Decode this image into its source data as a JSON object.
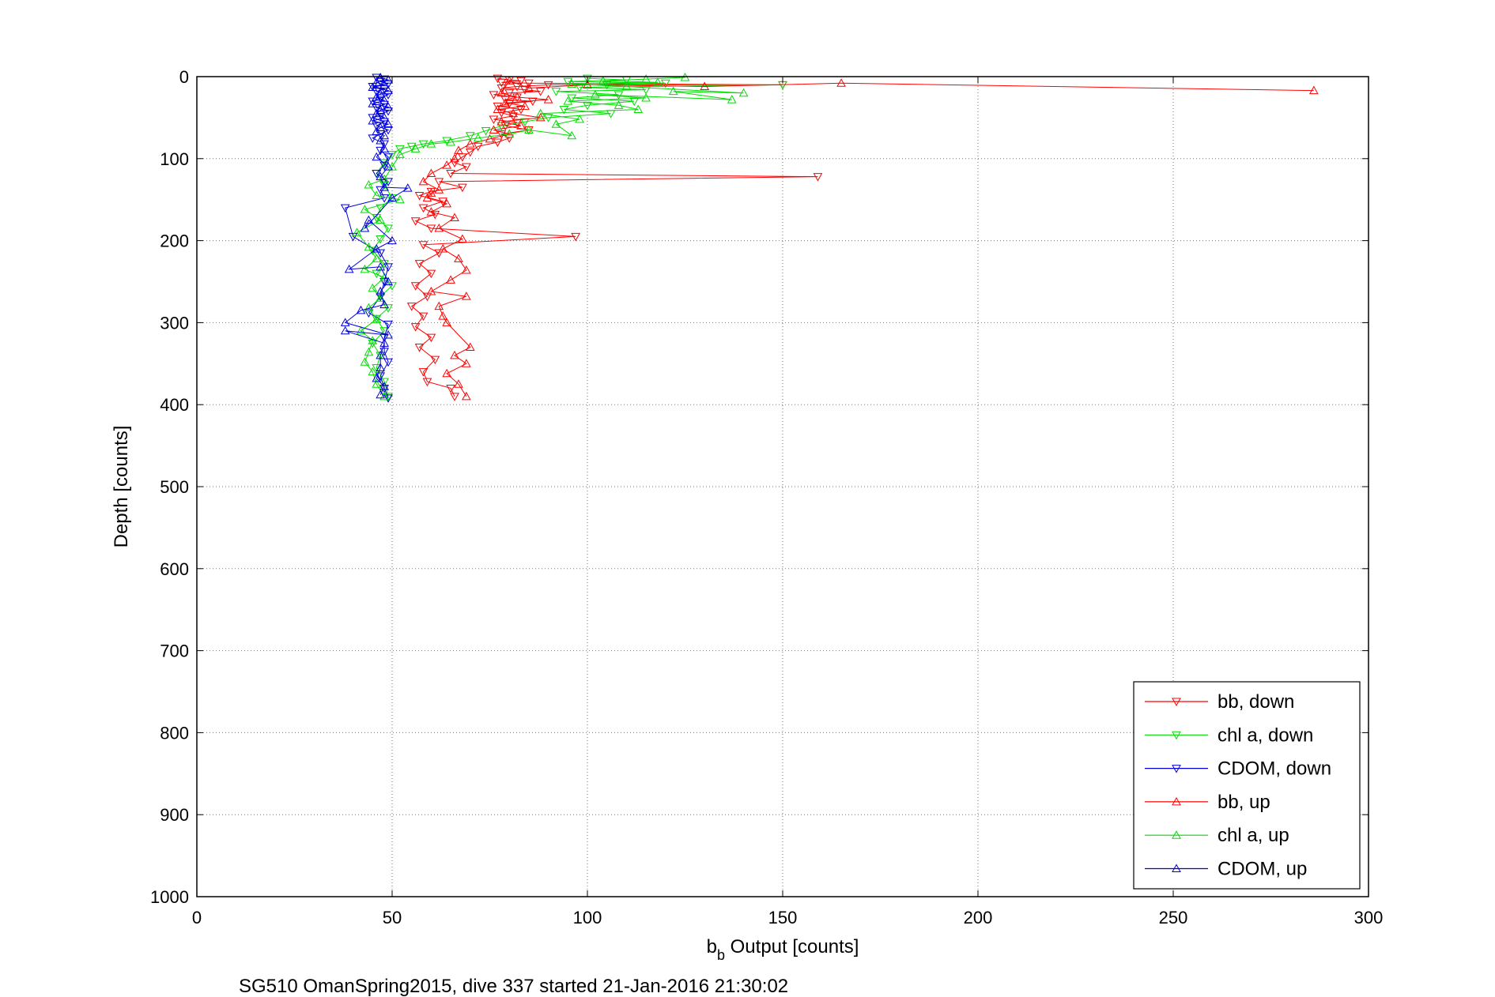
{
  "chart_data": {
    "type": "scatter",
    "xlabel_main": "b",
    "xlabel_sub": "b",
    "xlabel_rest": " Output [counts]",
    "ylabel": "Depth [counts]",
    "caption": "SG510 OmanSpring2015, dive 337 started 21-Jan-2016 21:30:02",
    "xlim": [
      0,
      300
    ],
    "ylim": [
      0,
      1000
    ],
    "y_reversed": true,
    "grid": true,
    "legend_placement": "bottom-right",
    "x_ticks": [
      "0",
      "50",
      "100",
      "150",
      "200",
      "250",
      "300"
    ],
    "y_ticks": [
      "0",
      "100",
      "200",
      "300",
      "400",
      "500",
      "600",
      "700",
      "800",
      "900",
      "1000"
    ],
    "series": [
      {
        "name": "bb, down",
        "color": "#ff0000",
        "marker": "triangle-down",
        "lines": true,
        "points": [
          [
            77,
            2
          ],
          [
            80,
            4
          ],
          [
            83,
            5
          ],
          [
            78,
            7
          ],
          [
            85,
            8
          ],
          [
            150,
            10
          ],
          [
            90,
            10
          ],
          [
            82,
            12
          ],
          [
            78,
            14
          ],
          [
            84,
            16
          ],
          [
            88,
            18
          ],
          [
            80,
            20
          ],
          [
            76,
            22
          ],
          [
            82,
            25
          ],
          [
            79,
            28
          ],
          [
            86,
            30
          ],
          [
            80,
            33
          ],
          [
            77,
            36
          ],
          [
            83,
            40
          ],
          [
            78,
            44
          ],
          [
            81,
            48
          ],
          [
            76,
            52
          ],
          [
            82,
            56
          ],
          [
            79,
            60
          ],
          [
            85,
            65
          ],
          [
            78,
            70
          ],
          [
            80,
            75
          ],
          [
            77,
            80
          ],
          [
            72,
            85
          ],
          [
            70,
            92
          ],
          [
            68,
            98
          ],
          [
            66,
            105
          ],
          [
            69,
            110
          ],
          [
            65,
            118
          ],
          [
            159,
            122
          ],
          [
            62,
            128
          ],
          [
            68,
            135
          ],
          [
            60,
            140
          ],
          [
            57,
            145
          ],
          [
            63,
            152
          ],
          [
            58,
            160
          ],
          [
            61,
            168
          ],
          [
            56,
            176
          ],
          [
            60,
            185
          ],
          [
            97,
            195
          ],
          [
            58,
            205
          ],
          [
            62,
            215
          ],
          [
            57,
            228
          ],
          [
            60,
            240
          ],
          [
            56,
            255
          ],
          [
            59,
            268
          ],
          [
            55,
            280
          ],
          [
            58,
            292
          ],
          [
            56,
            305
          ],
          [
            60,
            318
          ],
          [
            57,
            330
          ],
          [
            61,
            345
          ],
          [
            58,
            360
          ],
          [
            59,
            372
          ],
          [
            65,
            380
          ],
          [
            66,
            390
          ]
        ]
      },
      {
        "name": "chl a, down",
        "color": "#00dd00",
        "marker": "triangle-down",
        "lines": true,
        "points": [
          [
            100,
            2
          ],
          [
            110,
            4
          ],
          [
            95,
            6
          ],
          [
            120,
            8
          ],
          [
            105,
            10
          ],
          [
            150,
            10
          ],
          [
            98,
            13
          ],
          [
            115,
            16
          ],
          [
            92,
            18
          ],
          [
            108,
            22
          ],
          [
            96,
            26
          ],
          [
            112,
            30
          ],
          [
            100,
            35
          ],
          [
            94,
            40
          ],
          [
            106,
            45
          ],
          [
            90,
            50
          ],
          [
            84,
            55
          ],
          [
            78,
            60
          ],
          [
            74,
            66
          ],
          [
            70,
            72
          ],
          [
            64,
            78
          ],
          [
            58,
            82
          ],
          [
            55,
            85
          ],
          [
            52,
            88
          ],
          [
            50,
            95
          ],
          [
            48,
            105
          ],
          [
            46,
            118
          ],
          [
            48,
            132
          ],
          [
            50,
            148
          ],
          [
            47,
            160
          ],
          [
            46,
            172
          ],
          [
            49,
            185
          ],
          [
            47,
            198
          ],
          [
            45,
            212
          ],
          [
            48,
            228
          ],
          [
            46,
            240
          ],
          [
            50,
            255
          ],
          [
            47,
            268
          ],
          [
            49,
            282
          ],
          [
            46,
            295
          ],
          [
            48,
            310
          ],
          [
            45,
            325
          ],
          [
            47,
            340
          ],
          [
            46,
            355
          ],
          [
            48,
            372
          ],
          [
            49,
            390
          ]
        ]
      },
      {
        "name": "CDOM, down",
        "color": "#0000dd",
        "marker": "triangle-down",
        "lines": true,
        "points": [
          [
            46,
            1
          ],
          [
            48,
            3
          ],
          [
            47,
            6
          ],
          [
            49,
            9
          ],
          [
            45,
            12
          ],
          [
            48,
            15
          ],
          [
            46,
            18
          ],
          [
            49,
            22
          ],
          [
            47,
            26
          ],
          [
            45,
            30
          ],
          [
            48,
            34
          ],
          [
            46,
            38
          ],
          [
            49,
            42
          ],
          [
            47,
            46
          ],
          [
            45,
            50
          ],
          [
            48,
            55
          ],
          [
            46,
            60
          ],
          [
            49,
            65
          ],
          [
            47,
            70
          ],
          [
            45,
            75
          ],
          [
            48,
            82
          ],
          [
            47,
            90
          ],
          [
            49,
            98
          ],
          [
            48,
            108
          ],
          [
            46,
            118
          ],
          [
            49,
            128
          ],
          [
            47,
            138
          ],
          [
            48,
            148
          ],
          [
            38,
            160
          ],
          [
            40,
            195
          ],
          [
            47,
            215
          ],
          [
            49,
            232
          ],
          [
            48,
            250
          ],
          [
            47,
            268
          ],
          [
            44,
            288
          ],
          [
            49,
            302
          ],
          [
            48,
            318
          ],
          [
            48,
            335
          ],
          [
            49,
            348
          ],
          [
            47,
            365
          ],
          [
            48,
            380
          ],
          [
            49,
            392
          ]
        ]
      },
      {
        "name": "bb, up",
        "color": "#ff0000",
        "marker": "triangle-up",
        "lines": true,
        "points": [
          [
            286,
            17
          ],
          [
            165,
            8
          ],
          [
            130,
            12
          ],
          [
            100,
            10
          ],
          [
            85,
            14
          ],
          [
            80,
            5
          ],
          [
            78,
            20
          ],
          [
            82,
            25
          ],
          [
            90,
            28
          ],
          [
            79,
            32
          ],
          [
            84,
            36
          ],
          [
            77,
            40
          ],
          [
            81,
            45
          ],
          [
            88,
            50
          ],
          [
            78,
            55
          ],
          [
            83,
            60
          ],
          [
            76,
            65
          ],
          [
            80,
            70
          ],
          [
            75,
            76
          ],
          [
            70,
            82
          ],
          [
            67,
            90
          ],
          [
            66,
            100
          ],
          [
            64,
            108
          ],
          [
            60,
            118
          ],
          [
            58,
            128
          ],
          [
            62,
            138
          ],
          [
            60,
            142
          ],
          [
            59,
            148
          ],
          [
            64,
            155
          ],
          [
            60,
            165
          ],
          [
            66,
            172
          ],
          [
            62,
            185
          ],
          [
            68,
            198
          ],
          [
            63,
            210
          ],
          [
            67,
            222
          ],
          [
            69,
            236
          ],
          [
            65,
            248
          ],
          [
            60,
            262
          ],
          [
            69,
            268
          ],
          [
            62,
            280
          ],
          [
            63,
            292
          ],
          [
            64,
            300
          ],
          [
            70,
            330
          ],
          [
            66,
            340
          ],
          [
            69,
            350
          ],
          [
            64,
            362
          ],
          [
            67,
            375
          ],
          [
            69,
            390
          ]
        ]
      },
      {
        "name": "chl a, up",
        "color": "#00dd00",
        "marker": "triangle-up",
        "lines": true,
        "points": [
          [
            125,
            1
          ],
          [
            115,
            3
          ],
          [
            104,
            5
          ],
          [
            118,
            7
          ],
          [
            96,
            9
          ],
          [
            110,
            12
          ],
          [
            140,
            20
          ],
          [
            122,
            18
          ],
          [
            137,
            28
          ],
          [
            102,
            22
          ],
          [
            115,
            26
          ],
          [
            95,
            30
          ],
          [
            108,
            35
          ],
          [
            113,
            40
          ],
          [
            88,
            45
          ],
          [
            98,
            52
          ],
          [
            92,
            58
          ],
          [
            96,
            72
          ],
          [
            85,
            65
          ],
          [
            80,
            70
          ],
          [
            72,
            75
          ],
          [
            65,
            80
          ],
          [
            60,
            82
          ],
          [
            56,
            88
          ],
          [
            52,
            95
          ],
          [
            50,
            110
          ],
          [
            48,
            125
          ],
          [
            44,
            132
          ],
          [
            46,
            145
          ],
          [
            52,
            150
          ],
          [
            43,
            162
          ],
          [
            47,
            175
          ],
          [
            41,
            190
          ],
          [
            44,
            208
          ],
          [
            46,
            222
          ],
          [
            43,
            235
          ],
          [
            48,
            245
          ],
          [
            45,
            258
          ],
          [
            47,
            270
          ],
          [
            44,
            282
          ],
          [
            46,
            296
          ],
          [
            42,
            310
          ],
          [
            45,
            322
          ],
          [
            44,
            336
          ],
          [
            43,
            348
          ],
          [
            45,
            360
          ],
          [
            46,
            375
          ],
          [
            48,
            390
          ]
        ]
      },
      {
        "name": "CDOM, up",
        "color": "#0000dd",
        "marker": "triangle-up",
        "lines": true,
        "points": [
          [
            47,
            1
          ],
          [
            49,
            4
          ],
          [
            46,
            7
          ],
          [
            48,
            10
          ],
          [
            45,
            13
          ],
          [
            49,
            17
          ],
          [
            47,
            21
          ],
          [
            46,
            25
          ],
          [
            48,
            29
          ],
          [
            45,
            33
          ],
          [
            49,
            37
          ],
          [
            47,
            41
          ],
          [
            46,
            45
          ],
          [
            48,
            50
          ],
          [
            45,
            54
          ],
          [
            49,
            58
          ],
          [
            47,
            62
          ],
          [
            46,
            67
          ],
          [
            48,
            72
          ],
          [
            47,
            78
          ],
          [
            48,
            88
          ],
          [
            46,
            98
          ],
          [
            49,
            110
          ],
          [
            47,
            122
          ],
          [
            48,
            135
          ],
          [
            54,
            136
          ],
          [
            50,
            148
          ],
          [
            43,
            185
          ],
          [
            44,
            175
          ],
          [
            50,
            200
          ],
          [
            46,
            210
          ],
          [
            39,
            235
          ],
          [
            47,
            232
          ],
          [
            49,
            250
          ],
          [
            47,
            262
          ],
          [
            48,
            278
          ],
          [
            42,
            285
          ],
          [
            38,
            300
          ],
          [
            49,
            315
          ],
          [
            38,
            310
          ],
          [
            48,
            325
          ],
          [
            47,
            340
          ],
          [
            47,
            355
          ],
          [
            46,
            368
          ],
          [
            48,
            378
          ],
          [
            47,
            388
          ]
        ]
      }
    ]
  }
}
